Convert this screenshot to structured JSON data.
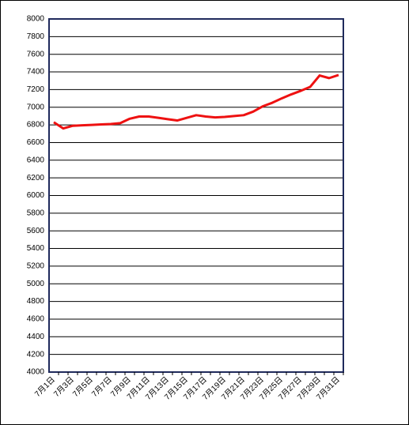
{
  "chart_data": {
    "type": "line",
    "categories": [
      "7月1日",
      null,
      "7月3日",
      null,
      "7月5日",
      null,
      "7月7日",
      null,
      "7月9日",
      null,
      "7月11日",
      null,
      "7月13日",
      null,
      "7月15日",
      null,
      "7月17日",
      null,
      "7月19日",
      null,
      "7月21日",
      null,
      "7月23日",
      null,
      "7月25日",
      null,
      "7月27日",
      null,
      "7月29日",
      null,
      "7月31日"
    ],
    "series": [
      {
        "color": "#ee1111",
        "values": [
          6830,
          6760,
          6790,
          6795,
          6800,
          6805,
          6810,
          6820,
          6870,
          6895,
          6895,
          6880,
          6865,
          6850,
          6880,
          6910,
          6895,
          6885,
          6890,
          6900,
          6910,
          6950,
          7010,
          7050,
          7100,
          7145,
          7185,
          7230,
          7360,
          7330,
          7365
        ]
      }
    ],
    "ylim": [
      4000,
      8000
    ],
    "yticks": [
      4000,
      4200,
      4400,
      4600,
      4800,
      5000,
      5200,
      5400,
      5600,
      5800,
      6000,
      6200,
      6400,
      6600,
      6800,
      7000,
      7200,
      7400,
      7600,
      7800,
      8000
    ],
    "grid": true
  }
}
